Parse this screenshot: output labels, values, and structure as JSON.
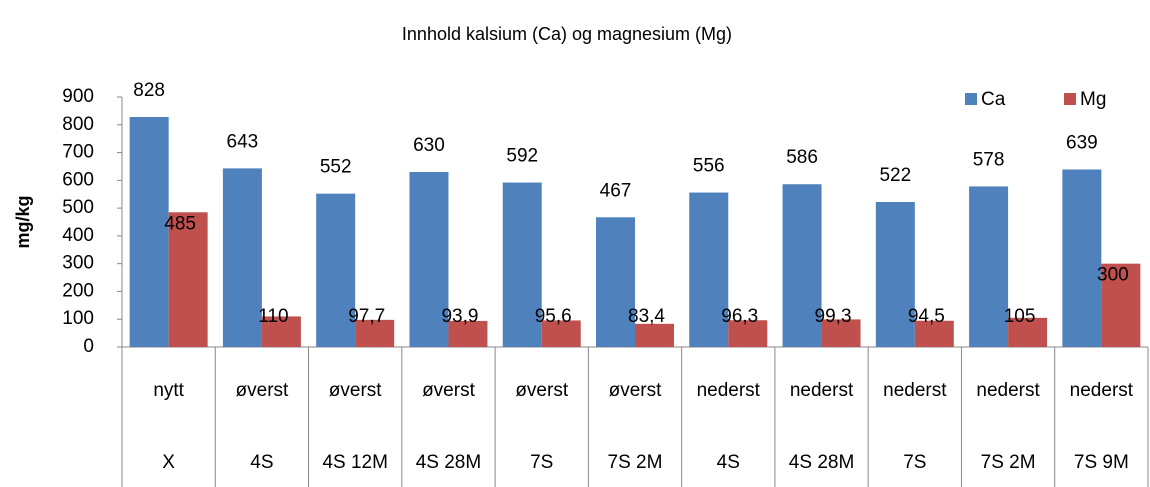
{
  "chart_data": {
    "type": "bar",
    "title": "Innhold kalsium (Ca) og magnesium (Mg)",
    "y_label": "mg/kg",
    "categories": [
      "nytt",
      "øverst",
      "øverst",
      "øverst",
      "øverst",
      "øverst",
      "nederst",
      "nederst",
      "nederst",
      "nederst",
      "nederst"
    ],
    "subcategories": [
      "X",
      "4S",
      "4S 12M",
      "4S 28M",
      "7S",
      "7S 2M",
      "4S",
      "4S 28M",
      "7S",
      "7S 2M",
      "7S 9M"
    ],
    "series": [
      {
        "name": "Ca",
        "color": "#4f81bd",
        "values": [
          828,
          643,
          552,
          630,
          592,
          467,
          556,
          586,
          522,
          578,
          639
        ]
      },
      {
        "name": "Mg",
        "color": "#c0504d",
        "values": [
          485,
          110,
          97.7,
          93.9,
          95.6,
          83.4,
          96.3,
          99.3,
          94.5,
          105,
          300
        ],
        "value_labels": [
          "485",
          "110",
          "97,7",
          "93,9",
          "95,6",
          "83,4",
          "96,3",
          "99,3",
          "94,5",
          "105",
          "300"
        ]
      }
    ],
    "ylim": [
      0,
      900
    ],
    "yticks": [
      0,
      100,
      200,
      300,
      400,
      500,
      600,
      700,
      800,
      900
    ],
    "grid": false,
    "legend": "top-right"
  }
}
